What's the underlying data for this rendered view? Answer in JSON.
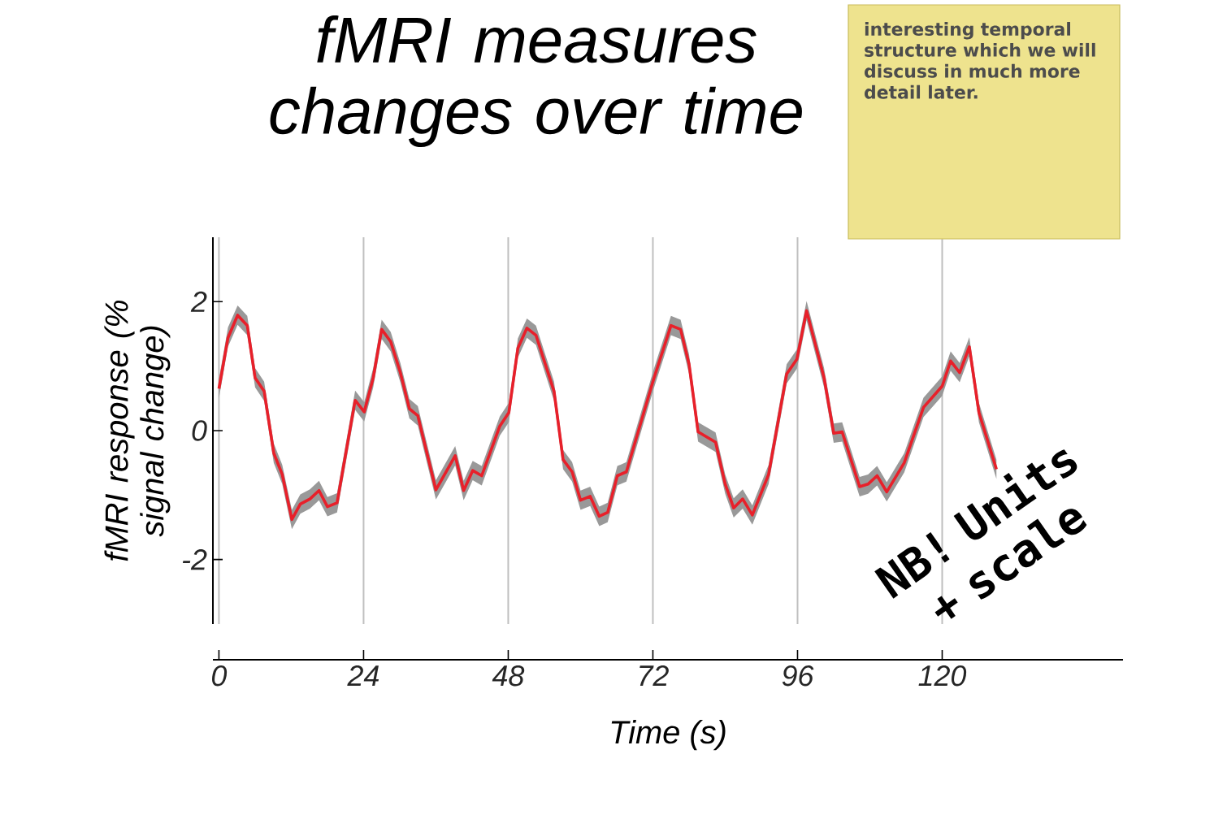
{
  "chart_data": {
    "type": "line",
    "title": "fMRI measures changes over time",
    "xlabel": "Time (s)",
    "ylabel": "fMRI response (% signal change)",
    "xlim": [
      -1,
      150
    ],
    "xticks": [
      0,
      24,
      48,
      72,
      96,
      120
    ],
    "ylim": [
      -3,
      3
    ],
    "yticks": [
      2,
      0,
      -2
    ],
    "grid": "x",
    "marker": "none",
    "line_style": "solid",
    "series": [
      {
        "color": "#e8202a",
        "x": [
          0,
          1.5,
          3.1,
          4.7,
          6,
          7.5,
          9.1,
          10.5,
          12.1,
          13.5,
          15.1,
          16.6,
          18,
          19.6,
          22.6,
          24.1,
          25.6,
          27,
          28.5,
          30.1,
          31.6,
          33,
          36,
          39.2,
          40.6,
          42.1,
          43.6,
          46.6,
          48.1,
          49.6,
          51.1,
          52.6,
          55.6,
          57.1,
          58.6,
          60,
          61.6,
          63.1,
          64.5,
          66.1,
          67.6,
          72.1,
          75,
          76.6,
          78,
          79.5,
          82.4,
          84,
          85.4,
          86.9,
          88.5,
          91.2,
          94.2,
          95.9,
          97.5,
          100.4,
          102,
          103.4,
          106.3,
          107.7,
          109.2,
          110.8,
          113.7,
          116.9,
          120,
          121.4,
          122.9,
          124.5,
          126.1,
          129
        ],
        "values": [
          0.65,
          1.44,
          1.79,
          1.63,
          0.82,
          0.61,
          -0.35,
          -0.68,
          -1.38,
          -1.14,
          -1.06,
          -0.93,
          -1.18,
          -1.12,
          0.47,
          0.29,
          0.82,
          1.57,
          1.38,
          0.9,
          0.34,
          0.23,
          -0.92,
          -0.39,
          -0.93,
          -0.62,
          -0.7,
          0.07,
          0.28,
          1.28,
          1.59,
          1.48,
          0.61,
          -0.45,
          -0.64,
          -1.08,
          -1.02,
          -1.33,
          -1.27,
          -0.7,
          -0.64,
          0.79,
          1.63,
          1.57,
          1.03,
          -0.02,
          -0.18,
          -0.83,
          -1.2,
          -1.06,
          -1.31,
          -0.68,
          0.88,
          1.11,
          1.86,
          0.82,
          -0.04,
          -0.02,
          -0.87,
          -0.83,
          -0.7,
          -0.95,
          -0.5,
          0.36,
          0.69,
          1.08,
          0.9,
          1.3,
          0.28,
          -0.6
        ],
        "lower": [
          0.5,
          1.3,
          1.64,
          1.48,
          0.67,
          0.46,
          -0.5,
          -0.83,
          -1.53,
          -1.29,
          -1.21,
          -1.08,
          -1.33,
          -1.27,
          0.32,
          0.14,
          0.67,
          1.42,
          1.23,
          0.75,
          0.19,
          0.08,
          -1.07,
          -0.54,
          -1.08,
          -0.77,
          -0.85,
          -0.08,
          0.13,
          1.13,
          1.44,
          1.33,
          0.46,
          -0.6,
          -0.79,
          -1.23,
          -1.17,
          -1.48,
          -1.42,
          -0.85,
          -0.79,
          0.64,
          1.48,
          1.42,
          0.88,
          -0.17,
          -0.33,
          -0.98,
          -1.35,
          -1.21,
          -1.46,
          -0.83,
          0.73,
          0.96,
          1.71,
          0.67,
          -0.19,
          -0.17,
          -1.02,
          -0.98,
          -0.85,
          -1.1,
          -0.65,
          0.21,
          0.54,
          0.93,
          0.75,
          1.15,
          0.13,
          -0.75
        ],
        "upper": [
          0.8,
          1.6,
          1.94,
          1.78,
          0.97,
          0.76,
          -0.2,
          -0.53,
          -1.23,
          -0.99,
          -0.91,
          -0.78,
          -1.03,
          -0.97,
          0.62,
          0.44,
          0.97,
          1.72,
          1.53,
          1.05,
          0.49,
          0.38,
          -0.77,
          -0.24,
          -0.78,
          -0.47,
          -0.55,
          0.22,
          0.43,
          1.43,
          1.74,
          1.63,
          0.76,
          -0.3,
          -0.49,
          -0.93,
          -0.87,
          -1.18,
          -1.12,
          -0.55,
          -0.49,
          0.94,
          1.78,
          1.72,
          1.18,
          0.13,
          -0.03,
          -0.68,
          -1.05,
          -0.91,
          -1.16,
          -0.53,
          1.03,
          1.26,
          2.01,
          0.97,
          0.11,
          0.13,
          -0.72,
          -0.68,
          -0.55,
          -0.8,
          -0.35,
          0.51,
          0.84,
          1.23,
          1.05,
          1.45,
          0.43,
          -0.45
        ]
      }
    ],
    "annotations": [
      "interesting temporal structure which we will discuss in much more detail later.",
      "NB! Units + scale"
    ]
  }
}
